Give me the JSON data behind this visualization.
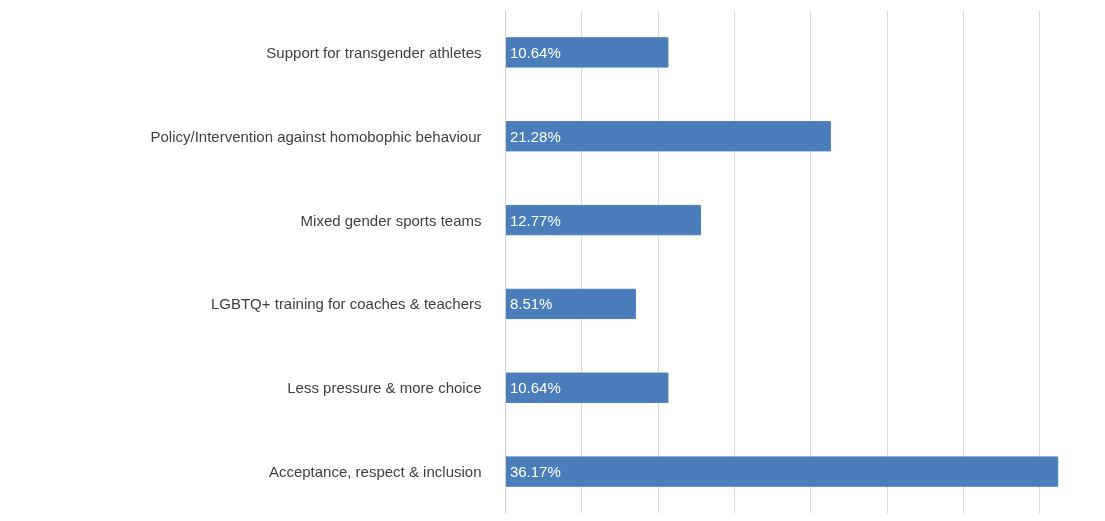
{
  "chart_data": {
    "type": "bar",
    "orientation": "horizontal",
    "categories": [
      "Support for transgender athletes",
      "Policy/Intervention against homobophic behaviour",
      "Mixed gender sports teams",
      "LGBTQ+ training for coaches & teachers",
      "Less pressure & more choice",
      "Acceptance, respect & inclusion"
    ],
    "values": [
      10.64,
      21.28,
      12.77,
      8.51,
      10.64,
      36.17
    ],
    "value_labels": [
      "10.64%",
      "21.28%",
      "12.77%",
      "8.51%",
      "10.64%",
      "36.17%"
    ],
    "color": "#4a7ebb",
    "xticks": [
      {
        "value": 0,
        "label": null
      },
      {
        "value": 5,
        "label": null
      },
      {
        "value": 10,
        "label": null
      },
      {
        "value": 15,
        "label": null
      },
      {
        "value": 20,
        "label": null
      },
      {
        "value": 25,
        "label": null
      },
      {
        "value": 30,
        "label": null
      },
      {
        "value": 35,
        "label": null
      }
    ],
    "grid": "x",
    "tick_labels": "y"
  }
}
